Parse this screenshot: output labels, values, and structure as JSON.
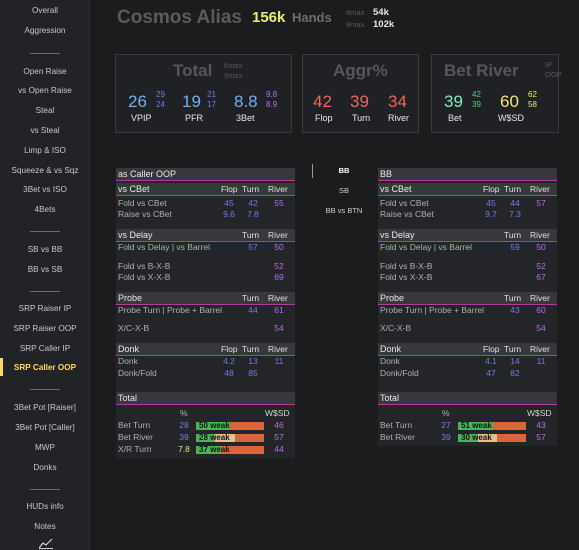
{
  "sidebar": {
    "items": [
      {
        "label": "Overall"
      },
      {
        "label": "Aggression"
      },
      {
        "label": "Open Raise"
      },
      {
        "label": "vs Open Raise"
      },
      {
        "label": "Steal"
      },
      {
        "label": "vs Steal"
      },
      {
        "label": "Limp & ISO"
      },
      {
        "label": "Squeeze & vs Sqz"
      },
      {
        "label": "3Bet vs ISO"
      },
      {
        "label": "4Bets"
      },
      {
        "label": "SB vs BB"
      },
      {
        "label": "BB vs SB"
      },
      {
        "label": "SRP Raiser IP"
      },
      {
        "label": "SRP Raiser OOP"
      },
      {
        "label": "SRP Caller IP"
      },
      {
        "label": "SRP Caller OOP"
      },
      {
        "label": "3Bet Pot [Raiser]"
      },
      {
        "label": "3Bet Pot [Caller]"
      },
      {
        "label": "MWP"
      },
      {
        "label": "Donks"
      },
      {
        "label": "HUDs info"
      },
      {
        "label": "Notes"
      }
    ],
    "active": "SRP Caller OOP"
  },
  "header": {
    "name": "Cosmos Alias",
    "hands": "156k",
    "hands_label": "Hands",
    "sixmax_label": "6max",
    "sixmax_value": "54k",
    "ninemax_label": "9max",
    "ninemax_value": "102k"
  },
  "total_box": {
    "title": "Total",
    "sub1": "6max",
    "sub2": "9max",
    "vpip": "26",
    "vpip_6": "29",
    "vpip_9": "24",
    "vpip_label": "VPIP",
    "pfr": "19",
    "pfr_6": "21",
    "pfr_9": "17",
    "pfr_label": "PFR",
    "threebet": "8.8",
    "threebet_6": "9.8",
    "threebet_9": "8.9",
    "threebet_label": "3Bet"
  },
  "aggr_box": {
    "title": "Aggr%",
    "flop": "42",
    "flop_label": "Flop",
    "turn": "39",
    "turn_label": "Turn",
    "river": "34",
    "river_label": "River"
  },
  "betriver_box": {
    "title": "Bet River",
    "sub1": "IP",
    "sub2": "OOP",
    "bet": "39",
    "bet_ip": "42",
    "bet_oop": "39",
    "bet_label": "Bet",
    "wsd": "60",
    "wsd_ip": "62",
    "wsd_oop": "58",
    "wsd_label": "W$SD"
  },
  "positions": {
    "items": [
      "BB",
      "SB",
      "BB vs BTN"
    ],
    "selected": "BB"
  },
  "left_table": {
    "title": "as Caller OOP",
    "cbet": {
      "title": "vs CBet",
      "cols": [
        "Flop",
        "Turn",
        "River"
      ],
      "rows": [
        {
          "label": "Fold vs CBet",
          "flop": "45",
          "turn": "42",
          "river": "55"
        },
        {
          "label": "Raise vs CBet",
          "flop": "9.6",
          "turn": "7.8",
          "river": ""
        }
      ]
    },
    "delay": {
      "title": "vs Delay",
      "cols": [
        "Turn",
        "River"
      ],
      "rows": [
        {
          "label": "Fold vs Delay | vs Barrel",
          "turn": "57",
          "river": "50"
        },
        {
          "label": "Fold vs B-X-B",
          "turn": "",
          "river": "52"
        },
        {
          "label": "Fold vs X-X-B",
          "turn": "",
          "river": "69"
        }
      ]
    },
    "probe": {
      "title": "Probe",
      "cols": [
        "Turn",
        "River"
      ],
      "rows": [
        {
          "label": "Probe Turn | Probe + Barrel",
          "turn": "44",
          "river": "61"
        },
        {
          "label": "X/C-X-B",
          "turn": "",
          "river": "54"
        }
      ]
    },
    "donk": {
      "title": "Donk",
      "cols": [
        "Flop",
        "Turn",
        "River"
      ],
      "rows": [
        {
          "label": "Donk",
          "flop": "4.2",
          "turn": "13",
          "river": "11"
        },
        {
          "label": "Donk/Fold",
          "flop": "48",
          "turn": "85",
          "river": ""
        }
      ]
    },
    "total": {
      "title": "Total",
      "pct_label": "%",
      "wsd_label": "W$SD",
      "rows": [
        {
          "label": "Bet Turn",
          "pct": "28",
          "bar_text": "50 weak",
          "weak": 50,
          "strong": 0,
          "wsd": "46"
        },
        {
          "label": "Bet River",
          "pct": "39",
          "bar_text": "28 weak",
          "weak": 28,
          "strong": 0,
          "wsd": "57"
        },
        {
          "label": "X/R Turn",
          "pct": "7.8",
          "bar_text": "37 weak",
          "weak": 37,
          "strong": 0,
          "wsd": "44"
        }
      ]
    }
  },
  "right_table": {
    "title": "BB",
    "cbet": {
      "title": "vs CBet",
      "cols": [
        "Flop",
        "Turn",
        "River"
      ],
      "rows": [
        {
          "label": "Fold vs CBet",
          "flop": "45",
          "turn": "44",
          "river": "57"
        },
        {
          "label": "Raise vs CBet",
          "flop": "9.7",
          "turn": "7.3",
          "river": ""
        }
      ]
    },
    "delay": {
      "title": "vs Delay",
      "cols": [
        "Turn",
        "River"
      ],
      "rows": [
        {
          "label": "Fold vs Delay | vs Barrel",
          "turn": "59",
          "river": "50"
        },
        {
          "label": "Fold vs B-X-B",
          "turn": "",
          "river": "52"
        },
        {
          "label": "Fold vs X-X-B",
          "turn": "",
          "river": "67"
        }
      ]
    },
    "probe": {
      "title": "Probe",
      "cols": [
        "Turn",
        "River"
      ],
      "rows": [
        {
          "label": "Probe Turn | Probe + Barrel",
          "turn": "43",
          "river": "60"
        },
        {
          "label": "X/C-X-B",
          "turn": "",
          "river": "54"
        }
      ]
    },
    "donk": {
      "title": "Donk",
      "cols": [
        "Flop",
        "Turn",
        "River"
      ],
      "rows": [
        {
          "label": "Donk",
          "flop": "4.1",
          "turn": "14",
          "river": "11"
        },
        {
          "label": "Donk/Fold",
          "flop": "47",
          "turn": "82",
          "river": ""
        }
      ]
    },
    "total": {
      "title": "Total",
      "pct_label": "%",
      "wsd_label": "W$SD",
      "rows": [
        {
          "label": "Bet Turn",
          "pct": "27",
          "bar_text": "51 weak",
          "weak": 51,
          "strong": 0,
          "wsd": "43"
        },
        {
          "label": "Bet River",
          "pct": "39",
          "bar_text": "30 weak",
          "weak": 30,
          "strong": 0,
          "wsd": "57"
        }
      ]
    }
  },
  "colors": {
    "accent": "#ffd75a",
    "blue": "#6d7ef0",
    "purple": "#b46ee8",
    "red": "#f0645a",
    "green": "#49b35a",
    "orange": "#d9653a"
  }
}
